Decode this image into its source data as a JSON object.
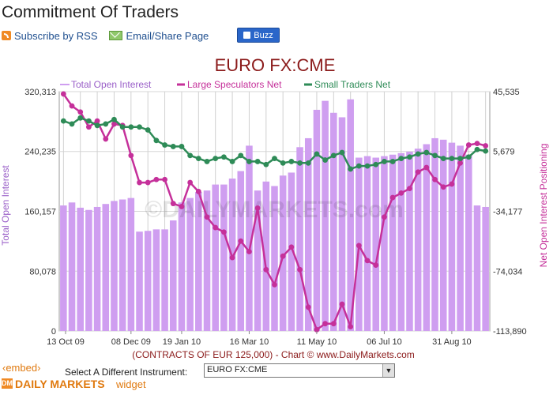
{
  "page": {
    "title": "Commitment Of Traders",
    "links": {
      "rss": "Subscribe by RSS",
      "email": "Email/Share Page",
      "buzz": "Buzz"
    }
  },
  "footer": {
    "embed": "‹embed›",
    "select_label": "Select A Different Instrument:",
    "select_value": "EURO FX:CME",
    "brand": "DAILY MARKETS",
    "brand_logo": "DM",
    "widget": "widget"
  },
  "chart_data": {
    "type": "bar",
    "title": "EURO FX:CME",
    "watermark": "©DAILYMARKETS.com",
    "xlabel": "(CONTRACTS OF EUR 125,000) - Chart © www.DailyMarkets.com",
    "ylabel_left": "Total Open Interest",
    "ylabel_right": "Net Open Interest Positioning",
    "legend_position": "top",
    "grid": true,
    "y_left": {
      "min": 0,
      "max": 320313,
      "ticks": [
        0,
        80078,
        160157,
        240235,
        320313
      ],
      "tick_labels": [
        "0",
        "80,078",
        "160,157",
        "240,235",
        "320,313"
      ]
    },
    "y_right": {
      "min": -113890,
      "max": 45535,
      "ticks": [
        -113890,
        -74034,
        -34177,
        5679,
        45535
      ],
      "tick_labels": [
        "-113,890",
        "-74,034",
        "-34,177",
        "5,679",
        "45,535"
      ]
    },
    "x_ticks": [
      {
        "index": 0,
        "label": "13 Oct 09"
      },
      {
        "index": 8,
        "label": "08 Dec 09"
      },
      {
        "index": 14,
        "label": "19 Jan 10"
      },
      {
        "index": 22,
        "label": "16 Mar 10"
      },
      {
        "index": 30,
        "label": "11 May 10"
      },
      {
        "index": 38,
        "label": "06 Jul 10"
      },
      {
        "index": 46,
        "label": "31 Aug 10"
      }
    ],
    "series": [
      {
        "name": "Total Open Interest",
        "axis": "left",
        "kind": "bar",
        "color": "#cf9ef0",
        "values": [
          168000,
          172000,
          165000,
          162000,
          166000,
          170000,
          174000,
          176000,
          178000,
          133000,
          134000,
          136000,
          136000,
          148000,
          172000,
          178000,
          186000,
          188000,
          196000,
          196000,
          204000,
          214000,
          248000,
          188000,
          200000,
          194000,
          208000,
          212000,
          246000,
          258000,
          296000,
          308000,
          292000,
          286000,
          310000,
          232000,
          234000,
          232000,
          234000,
          236000,
          238000,
          240000,
          244000,
          250000,
          258000,
          256000,
          252000,
          248000,
          236000,
          168000,
          166000
        ]
      },
      {
        "name": "Large Speculators Net",
        "axis": "right",
        "kind": "line",
        "color": "#c5309a",
        "values": [
          44000,
          36000,
          32000,
          22000,
          26000,
          14000,
          24000,
          23000,
          3000,
          -15000,
          -15000,
          -13000,
          -13000,
          -29000,
          -31000,
          -15000,
          -21000,
          -38000,
          -45000,
          -48000,
          -65000,
          -54000,
          -61000,
          -32000,
          -73000,
          -83000,
          -64000,
          -58000,
          -73000,
          -98000,
          -113000,
          -109000,
          -109000,
          -96000,
          -111000,
          -57000,
          -67000,
          -70000,
          -38000,
          -25000,
          -22000,
          -19000,
          -8000,
          -5000,
          -13000,
          -18000,
          -16000,
          -2000,
          10000,
          11000,
          9500
        ]
      },
      {
        "name": "Small Traders Net",
        "axis": "right",
        "kind": "line",
        "color": "#2e8b57",
        "values": [
          26000,
          24000,
          28000,
          26000,
          23000,
          24000,
          27000,
          22000,
          22000,
          22000,
          20000,
          13000,
          10000,
          9000,
          9000,
          3000,
          1000,
          -1000,
          1000,
          2000,
          -1000,
          3000,
          -1000,
          -1000,
          -3000,
          1000,
          -2000,
          -1000,
          -2000,
          -2000,
          4000,
          0,
          3000,
          5000,
          -6000,
          -4000,
          -4000,
          -3000,
          -1000,
          -1000,
          1000,
          2000,
          4000,
          5000,
          3000,
          1000,
          1000,
          1000,
          2000,
          7000,
          6000
        ]
      }
    ]
  }
}
